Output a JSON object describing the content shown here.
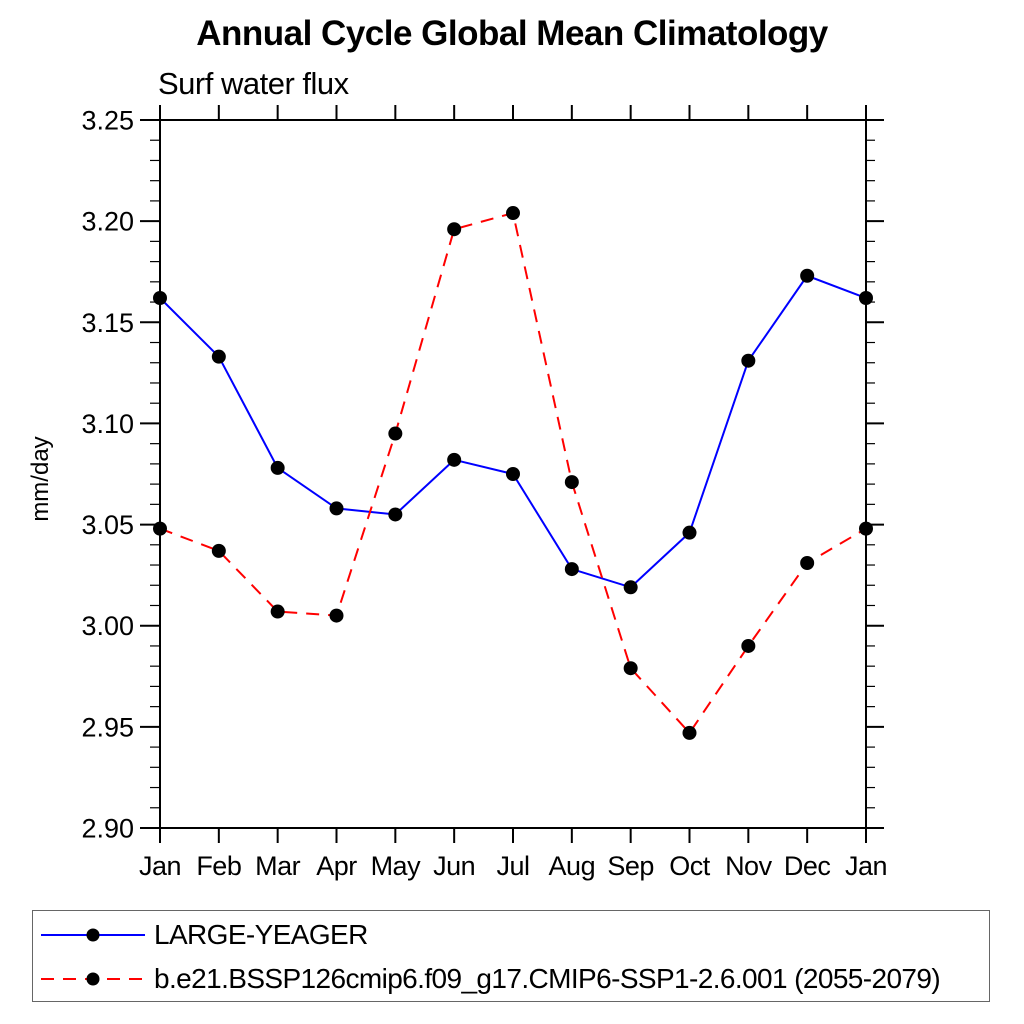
{
  "title": "Annual Cycle Global Mean Climatology",
  "subtitle": "Surf water flux",
  "ylabel": "mm/day",
  "colors": {
    "series1": "#0000ff",
    "series2": "#ff0000",
    "marker": "#000000",
    "axis": "#000000",
    "legend_border": "#666666"
  },
  "chart_data": {
    "type": "line",
    "title": "Annual Cycle Global Mean Climatology",
    "subtitle": "Surf water flux",
    "xlabel": "",
    "ylabel": "mm/day",
    "categories": [
      "Jan",
      "Feb",
      "Mar",
      "Apr",
      "May",
      "Jun",
      "Jul",
      "Aug",
      "Sep",
      "Oct",
      "Nov",
      "Dec",
      "Jan"
    ],
    "ylim": [
      2.9,
      3.25
    ],
    "ytick_step": 0.05,
    "yminor_step": 0.01,
    "ytick_labels": [
      "2.90",
      "2.95",
      "3.00",
      "3.05",
      "3.10",
      "3.15",
      "3.20",
      "3.25"
    ],
    "grid": false,
    "legend_position": "bottom",
    "series": [
      {
        "name": "LARGE-YEAGER",
        "color": "#0000ff",
        "line_style": "solid",
        "marker": "filled-circle",
        "values": [
          3.162,
          3.133,
          3.078,
          3.058,
          3.055,
          3.082,
          3.075,
          3.028,
          3.019,
          3.046,
          3.131,
          3.173,
          3.162
        ]
      },
      {
        "name": "b.e21.BSSP126cmip6.f09_g17.CMIP6-SSP1-2.6.001 (2055-2079)",
        "color": "#ff0000",
        "line_style": "dashed",
        "marker": "filled-circle",
        "values": [
          3.048,
          3.037,
          3.007,
          3.005,
          3.095,
          3.196,
          3.204,
          3.071,
          2.979,
          2.947,
          2.99,
          3.031,
          3.048
        ]
      }
    ]
  }
}
